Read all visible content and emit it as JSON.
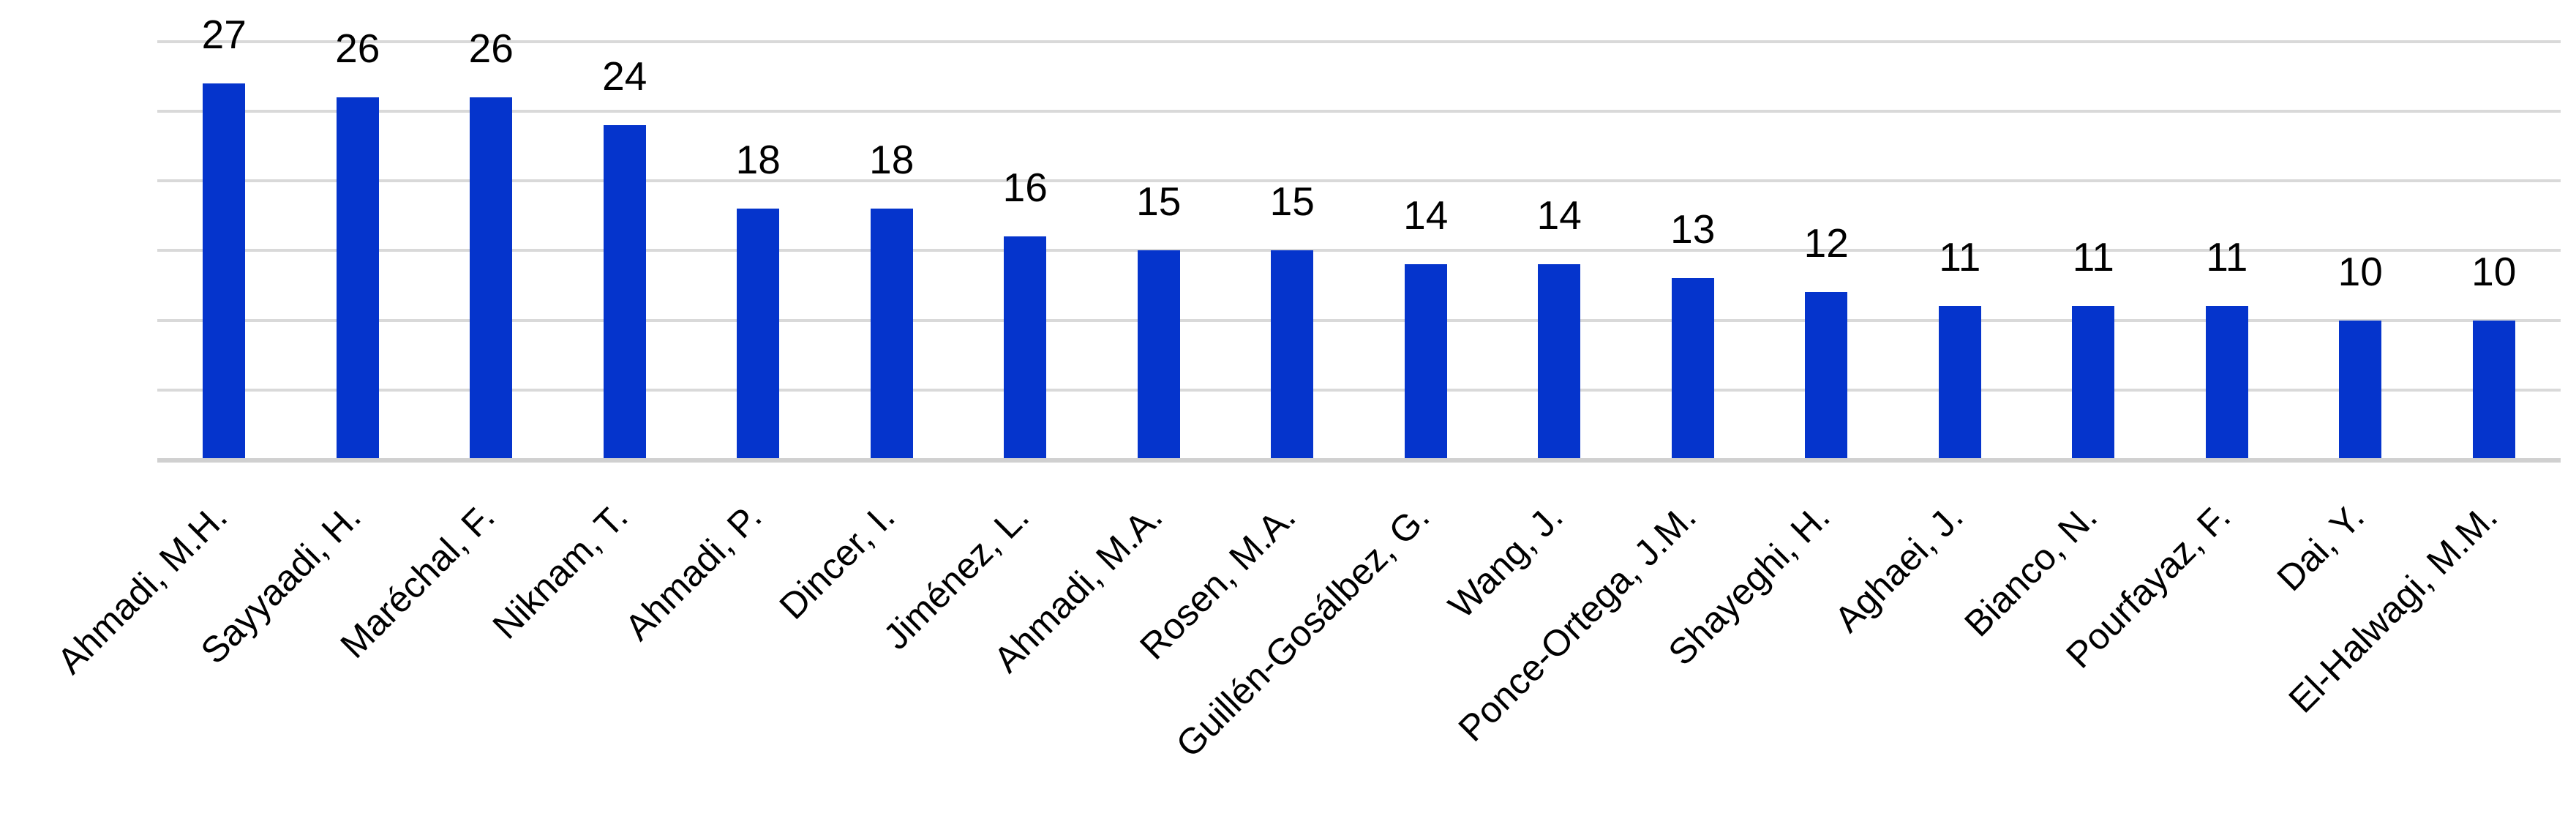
{
  "chart_data": {
    "type": "bar",
    "title": "",
    "xlabel": "",
    "ylabel": "",
    "categories": [
      "Ahmadi, M.H.",
      "Sayyaadi, H.",
      "Maréchal, F.",
      "Niknam, T.",
      "Ahmadi, P.",
      "Dincer, I.",
      "Jiménez, L.",
      "Ahmadi, M.A.",
      "Rosen, M.A.",
      "Guillén-Gosálbez, G.",
      "Wang, J.",
      "Ponce-Ortega, J.M.",
      "Shayeghi, H.",
      "Aghaei, J.",
      "Bianco, N.",
      "Pourfayaz, F.",
      "Dai, Y.",
      "El-Halwagi, M.M."
    ],
    "values": [
      27,
      26,
      26,
      24,
      18,
      18,
      16,
      15,
      15,
      14,
      14,
      13,
      12,
      11,
      11,
      11,
      10,
      10
    ],
    "data_labels": [
      "27",
      "26",
      "26",
      "24",
      "18",
      "18",
      "16",
      "15",
      "15",
      "14",
      "14",
      "13",
      "12",
      "11",
      "11",
      "11",
      "10",
      "10"
    ],
    "ylim": [
      0,
      30
    ],
    "grid_step": 5,
    "grid": true,
    "legend": false,
    "y_axis_tick_labels_shown": false,
    "x_label_rotation_deg": -45,
    "colors": {
      "bar": "#0534CC",
      "gridline": "#D9D9D9",
      "axis_line": "#D0D0D0",
      "text": "#000000",
      "background": "#FFFFFF"
    }
  }
}
